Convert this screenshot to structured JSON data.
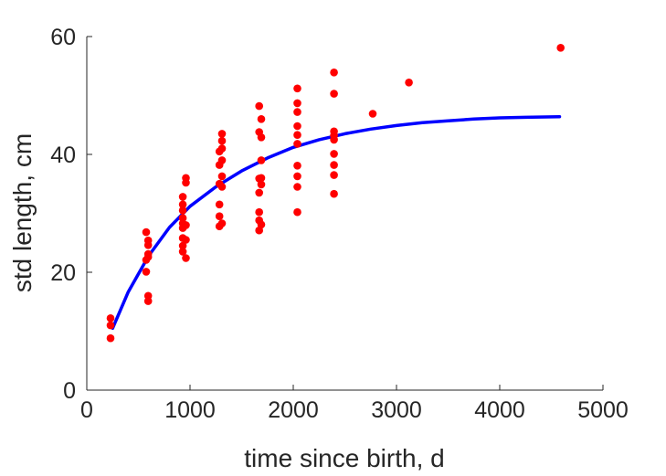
{
  "chart_data": {
    "type": "scatter",
    "title": "",
    "xlabel": "time since birth, d",
    "ylabel": "std length, cm",
    "xlim": [
      0,
      5000
    ],
    "ylim": [
      0,
      60
    ],
    "xticks": [
      0,
      1000,
      2000,
      3000,
      4000,
      5000
    ],
    "yticks": [
      0,
      20,
      40,
      60
    ],
    "xtick_labels": [
      "0",
      "1000",
      "2000",
      "3000",
      "4000",
      "5000"
    ],
    "ytick_labels": [
      "0",
      "20",
      "40",
      "60"
    ],
    "grid": false,
    "colors": {
      "points": "#ff0000",
      "curve": "#0000ff",
      "axis": "#262626"
    },
    "series": [
      {
        "type": "scatter",
        "points": [
          [
            230,
            12.2
          ],
          [
            230,
            11.0
          ],
          [
            230,
            8.8
          ],
          [
            575,
            26.8
          ],
          [
            575,
            22.1
          ],
          [
            575,
            20.1
          ],
          [
            595,
            25.4
          ],
          [
            595,
            24.6
          ],
          [
            595,
            23.1
          ],
          [
            595,
            22.6
          ],
          [
            595,
            16.0
          ],
          [
            595,
            15.1
          ],
          [
            930,
            32.8
          ],
          [
            930,
            31.5
          ],
          [
            930,
            30.5
          ],
          [
            930,
            29.2
          ],
          [
            930,
            28.3
          ],
          [
            930,
            27.5
          ],
          [
            930,
            25.8
          ],
          [
            930,
            24.5
          ],
          [
            930,
            23.5
          ],
          [
            960,
            36.0
          ],
          [
            960,
            35.2
          ],
          [
            960,
            28.0
          ],
          [
            960,
            25.5
          ],
          [
            960,
            22.4
          ],
          [
            1285,
            40.5
          ],
          [
            1285,
            38.2
          ],
          [
            1285,
            35.0
          ],
          [
            1285,
            31.5
          ],
          [
            1285,
            29.5
          ],
          [
            1285,
            27.8
          ],
          [
            1310,
            43.5
          ],
          [
            1310,
            42.3
          ],
          [
            1310,
            41.0
          ],
          [
            1310,
            39.0
          ],
          [
            1310,
            36.3
          ],
          [
            1310,
            34.5
          ],
          [
            1310,
            28.3
          ],
          [
            1670,
            48.2
          ],
          [
            1670,
            43.8
          ],
          [
            1670,
            35.9
          ],
          [
            1670,
            33.5
          ],
          [
            1670,
            30.2
          ],
          [
            1670,
            28.8
          ],
          [
            1670,
            27.1
          ],
          [
            1690,
            46.0
          ],
          [
            1690,
            42.9
          ],
          [
            1690,
            39.0
          ],
          [
            1690,
            36.0
          ],
          [
            1690,
            34.9
          ],
          [
            1690,
            28.1
          ],
          [
            2040,
            51.2
          ],
          [
            2040,
            48.7
          ],
          [
            2040,
            47.2
          ],
          [
            2040,
            44.8
          ],
          [
            2040,
            43.3
          ],
          [
            2040,
            41.8
          ],
          [
            2040,
            38.1
          ],
          [
            2040,
            36.3
          ],
          [
            2040,
            34.5
          ],
          [
            2040,
            30.2
          ],
          [
            2395,
            53.9
          ],
          [
            2395,
            50.3
          ],
          [
            2395,
            43.9
          ],
          [
            2395,
            43.2
          ],
          [
            2395,
            42.5
          ],
          [
            2395,
            40.1
          ],
          [
            2395,
            38.2
          ],
          [
            2395,
            36.5
          ],
          [
            2395,
            33.3
          ],
          [
            2770,
            46.9
          ],
          [
            3120,
            52.2
          ],
          [
            4590,
            58.1
          ]
        ]
      },
      {
        "type": "line",
        "x": [
          250,
          400,
          600,
          800,
          1000,
          1250,
          1500,
          1750,
          2000,
          2250,
          2500,
          2750,
          3000,
          3250,
          3500,
          3750,
          4000,
          4250,
          4580
        ],
        "y": [
          10.5,
          16.6,
          22.8,
          27.6,
          31.2,
          34.5,
          37.2,
          39.4,
          41.2,
          42.5,
          43.5,
          44.3,
          44.9,
          45.4,
          45.7,
          46.0,
          46.2,
          46.3,
          46.4
        ]
      }
    ]
  }
}
